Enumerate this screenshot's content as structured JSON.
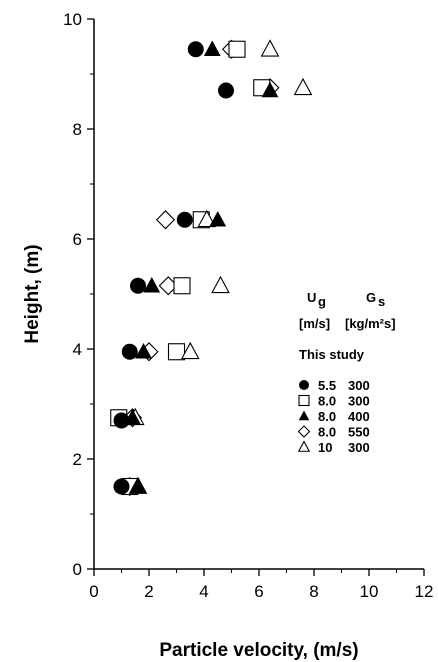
{
  "chart_data": {
    "type": "scatter",
    "xlabel": "Particle velocity, (m/s)",
    "ylabel": "Height, (m)",
    "xlim": [
      0,
      12
    ],
    "ylim": [
      0,
      10
    ],
    "xticks": [
      "0",
      "2",
      "4",
      "6",
      "8",
      "10",
      "12"
    ],
    "yticks": [
      "0",
      "2",
      "4",
      "6",
      "8",
      "10"
    ],
    "grid": false,
    "legend": {
      "placement": "right",
      "col1_symbol": "U",
      "col1_subscript": "g",
      "col1_unit": "[m/s]",
      "col2_symbol": "G",
      "col2_subscript": "s",
      "col2_unit": "[kg/m²s]",
      "study_label": "This study"
    },
    "series": [
      {
        "ug": "5.5",
        "gs": "300",
        "marker": "circle-filled",
        "points": [
          [
            1.0,
            1.5
          ],
          [
            1.0,
            2.7
          ],
          [
            1.3,
            3.95
          ],
          [
            1.6,
            5.15
          ],
          [
            3.3,
            6.35
          ],
          [
            4.8,
            8.7
          ],
          [
            3.7,
            9.45
          ]
        ]
      },
      {
        "ug": "8.0",
        "gs": "300",
        "marker": "square-open",
        "points": [
          [
            1.3,
            1.5
          ],
          [
            0.9,
            2.75
          ],
          [
            3.0,
            3.95
          ],
          [
            3.2,
            5.15
          ],
          [
            3.9,
            6.35
          ],
          [
            6.1,
            8.75
          ],
          [
            5.2,
            9.45
          ]
        ]
      },
      {
        "ug": "8.0",
        "gs": "400",
        "marker": "triangle-filled",
        "points": [
          [
            1.6,
            1.5
          ],
          [
            1.4,
            2.75
          ],
          [
            1.8,
            3.95
          ],
          [
            2.1,
            5.15
          ],
          [
            4.5,
            6.35
          ],
          [
            6.4,
            8.7
          ],
          [
            4.3,
            9.45
          ]
        ]
      },
      {
        "ug": "8.0",
        "gs": "550",
        "marker": "diamond-open",
        "points": [
          [
            1.3,
            1.5
          ],
          [
            1.4,
            2.75
          ],
          [
            2.0,
            3.95
          ],
          [
            2.7,
            5.15
          ],
          [
            2.6,
            6.35
          ],
          [
            6.4,
            8.75
          ],
          [
            5.0,
            9.45
          ]
        ]
      },
      {
        "ug": "10",
        "gs": "300",
        "marker": "triangle-open",
        "points": [
          [
            1.6,
            1.5
          ],
          [
            1.5,
            2.75
          ],
          [
            3.5,
            3.95
          ],
          [
            4.6,
            5.15
          ],
          [
            4.1,
            6.35
          ],
          [
            7.6,
            8.75
          ],
          [
            6.4,
            9.45
          ]
        ]
      }
    ]
  }
}
